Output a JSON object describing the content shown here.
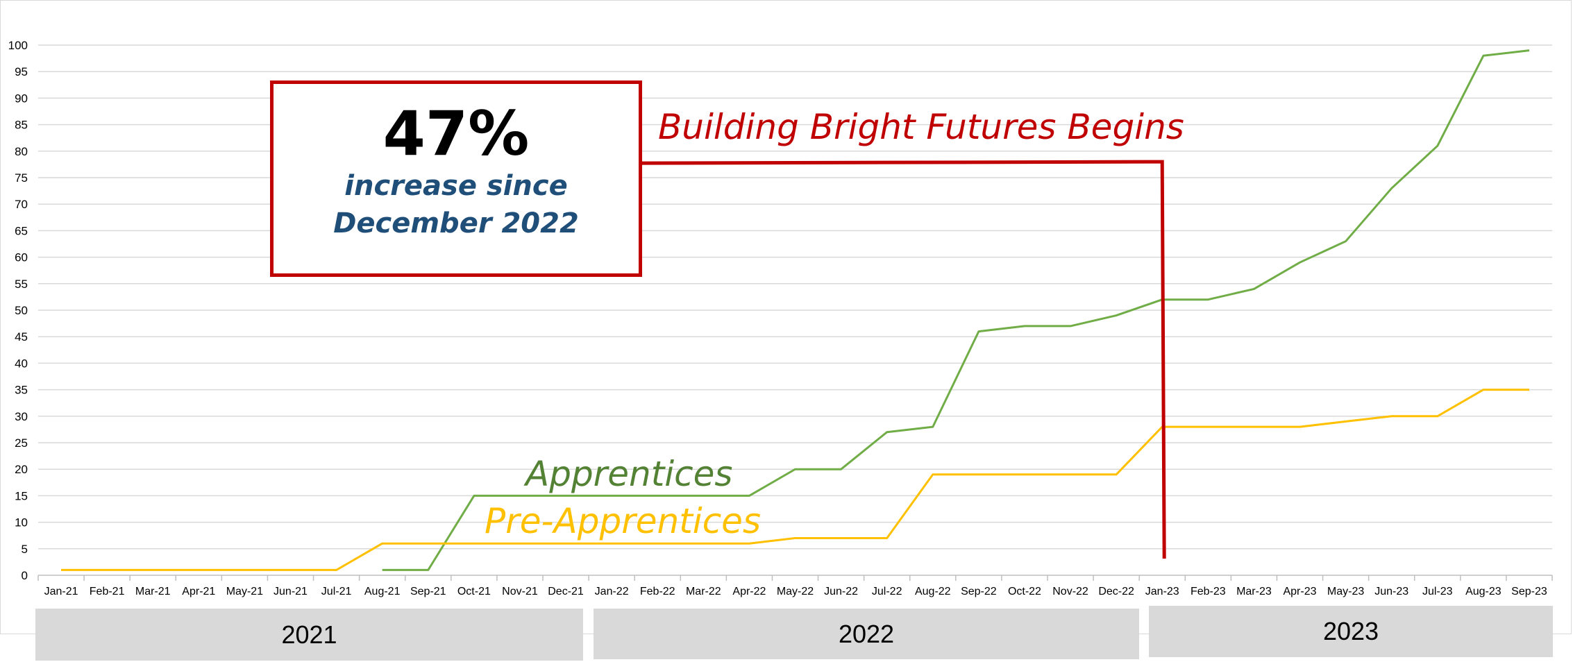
{
  "chart_data": {
    "type": "line",
    "categories": [
      "Jan-21",
      "Feb-21",
      "Mar-21",
      "Apr-21",
      "May-21",
      "Jun-21",
      "Jul-21",
      "Aug-21",
      "Sep-21",
      "Oct-21",
      "Nov-21",
      "Dec-21",
      "Jan-22",
      "Feb-22",
      "Mar-22",
      "Apr-22",
      "May-22",
      "Jun-22",
      "Jul-22",
      "Aug-22",
      "Sep-22",
      "Oct-22",
      "Nov-22",
      "Dec-22",
      "Jan-23",
      "Feb-23",
      "Mar-23",
      "Apr-23",
      "May-23",
      "Jun-23",
      "Jul-23",
      "Aug-23",
      "Sep-23"
    ],
    "series": [
      {
        "name": "Apprentices",
        "color": "#70ad47",
        "values": [
          null,
          null,
          null,
          null,
          null,
          null,
          null,
          1,
          1,
          15,
          15,
          15,
          15,
          15,
          15,
          15,
          20,
          20,
          27,
          28,
          46,
          47,
          47,
          49,
          52,
          52,
          54,
          59,
          63,
          73,
          81,
          98,
          99
        ]
      },
      {
        "name": "Pre-Apprentices",
        "color": "#ffc000",
        "values": [
          1,
          1,
          1,
          1,
          1,
          1,
          1,
          6,
          6,
          6,
          6,
          6,
          6,
          6,
          6,
          6,
          7,
          7,
          7,
          19,
          19,
          19,
          19,
          19,
          28,
          28,
          28,
          28,
          29,
          30,
          30,
          35,
          35
        ]
      }
    ],
    "ylim": [
      0,
      100
    ],
    "yticks": [
      0,
      5,
      10,
      15,
      20,
      25,
      30,
      35,
      40,
      45,
      50,
      55,
      60,
      65,
      70,
      75,
      80,
      85,
      90,
      95,
      100
    ],
    "grid": true,
    "years": [
      {
        "label": "2021",
        "from": "Jan-21",
        "to": "Dec-21"
      },
      {
        "label": "2022",
        "from": "Jan-22",
        "to": "Dec-22"
      },
      {
        "label": "2023",
        "from": "Jan-23",
        "to": "Sep-23"
      }
    ],
    "annotation": {
      "text": "Building Bright Futures Begins",
      "at": "Jan-23",
      "level": 78,
      "color": "#c00000"
    },
    "callout": {
      "headline": "47%",
      "line1": "increase since",
      "line2": "December 2022"
    }
  }
}
